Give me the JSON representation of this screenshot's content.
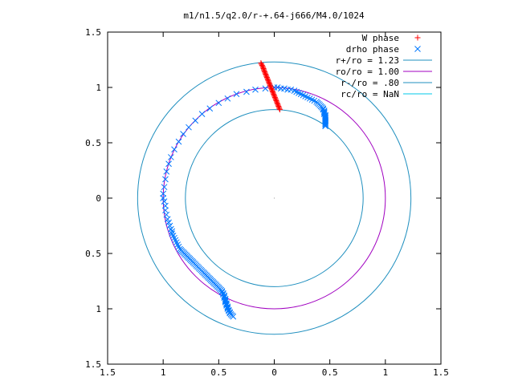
{
  "chart_data": {
    "type": "scatter",
    "title": "m1/n1.5/q2.0/r-+.64-j666/M4.0/1024",
    "xlim": [
      -1.5,
      1.5
    ],
    "ylim": [
      -1.5,
      1.5
    ],
    "x_ticks": [
      {
        "value": -1.5,
        "label": "1.5"
      },
      {
        "value": -1,
        "label": "1"
      },
      {
        "value": -0.5,
        "label": "0.5"
      },
      {
        "value": 0,
        "label": "0"
      },
      {
        "value": 0.5,
        "label": "0.5"
      },
      {
        "value": 1,
        "label": "1"
      },
      {
        "value": 1.5,
        "label": "1.5"
      }
    ],
    "y_ticks": [
      {
        "value": 1.5,
        "label": "1.5"
      },
      {
        "value": 1,
        "label": "1"
      },
      {
        "value": 0.5,
        "label": "0.5"
      },
      {
        "value": 0,
        "label": "0"
      },
      {
        "value": -0.5,
        "label": "0.5"
      },
      {
        "value": -1,
        "label": "1"
      },
      {
        "value": -1.5,
        "label": "1.5"
      }
    ],
    "grid": false,
    "legend_position": "top-right",
    "circles": [
      {
        "name": "r+/ro = 1.23",
        "radius": 1.23,
        "color": "#1f8fbf"
      },
      {
        "name": "ro/ro = 1.00",
        "radius": 1.0,
        "color": "#a000c0"
      },
      {
        "name": "r-/ro = .80",
        "radius": 0.8,
        "color": "#1f8fbf"
      },
      {
        "name": "rc/ro = NaN",
        "radius": null,
        "color": "#00c8e8"
      }
    ],
    "series": [
      {
        "name": "W phase",
        "marker": "plus",
        "color": "#ff0000",
        "points": [
          [
            -0.12,
            1.22
          ],
          [
            -0.115,
            1.21
          ],
          [
            -0.11,
            1.2
          ],
          [
            -0.105,
            1.19
          ],
          [
            -0.1,
            1.18
          ],
          [
            -0.097,
            1.17
          ],
          [
            -0.094,
            1.16
          ],
          [
            -0.09,
            1.15
          ],
          [
            -0.086,
            1.14
          ],
          [
            -0.082,
            1.13
          ],
          [
            -0.078,
            1.12
          ],
          [
            -0.074,
            1.11
          ],
          [
            -0.07,
            1.1
          ],
          [
            -0.066,
            1.09
          ],
          [
            -0.062,
            1.08
          ],
          [
            -0.058,
            1.07
          ],
          [
            -0.054,
            1.06
          ],
          [
            -0.05,
            1.05
          ],
          [
            -0.046,
            1.04
          ],
          [
            -0.042,
            1.03
          ],
          [
            -0.038,
            1.02
          ],
          [
            -0.034,
            1.01
          ],
          [
            -0.03,
            1.0
          ],
          [
            -0.026,
            0.99
          ],
          [
            -0.022,
            0.98
          ],
          [
            -0.018,
            0.97
          ],
          [
            -0.014,
            0.96
          ],
          [
            -0.01,
            0.95
          ],
          [
            -0.006,
            0.94
          ],
          [
            -0.002,
            0.93
          ],
          [
            0.002,
            0.92
          ],
          [
            0.006,
            0.91
          ],
          [
            0.01,
            0.9
          ],
          [
            0.014,
            0.89
          ],
          [
            0.018,
            0.88
          ],
          [
            0.022,
            0.87
          ],
          [
            0.026,
            0.86
          ],
          [
            0.03,
            0.85
          ],
          [
            0.034,
            0.84
          ],
          [
            0.038,
            0.83
          ],
          [
            0.042,
            0.82
          ],
          [
            0.046,
            0.81
          ],
          [
            0.05,
            0.8
          ]
        ]
      },
      {
        "name": "drho phase",
        "marker": "cross",
        "color": "#0078ff",
        "points": [
          [
            -0.37,
            -1.07
          ],
          [
            -0.38,
            -1.06
          ],
          [
            -0.39,
            -1.05
          ],
          [
            -0.4,
            -1.04
          ],
          [
            -0.4,
            -1.03
          ],
          [
            -0.41,
            -1.02
          ],
          [
            -0.41,
            -1.01
          ],
          [
            -0.42,
            -1.0
          ],
          [
            -0.42,
            -0.99
          ],
          [
            -0.42,
            -0.98
          ],
          [
            -0.43,
            -0.97
          ],
          [
            -0.43,
            -0.96
          ],
          [
            -0.43,
            -0.95
          ],
          [
            -0.44,
            -0.94
          ],
          [
            -0.44,
            -0.93
          ],
          [
            -0.44,
            -0.92
          ],
          [
            -0.44,
            -0.91
          ],
          [
            -0.45,
            -0.9
          ],
          [
            -0.45,
            -0.89
          ],
          [
            -0.45,
            -0.88
          ],
          [
            -0.46,
            -0.87
          ],
          [
            -0.46,
            -0.86
          ],
          [
            -0.47,
            -0.85
          ],
          [
            -0.47,
            -0.84
          ],
          [
            -0.48,
            -0.83
          ],
          [
            -0.49,
            -0.82
          ],
          [
            -0.5,
            -0.81
          ],
          [
            -0.51,
            -0.8
          ],
          [
            -0.52,
            -0.79
          ],
          [
            -0.53,
            -0.78
          ],
          [
            -0.54,
            -0.77
          ],
          [
            -0.55,
            -0.76
          ],
          [
            -0.56,
            -0.75
          ],
          [
            -0.57,
            -0.74
          ],
          [
            -0.58,
            -0.73
          ],
          [
            -0.59,
            -0.72
          ],
          [
            -0.6,
            -0.71
          ],
          [
            -0.61,
            -0.7
          ],
          [
            -0.62,
            -0.69
          ],
          [
            -0.63,
            -0.68
          ],
          [
            -0.64,
            -0.67
          ],
          [
            -0.65,
            -0.66
          ],
          [
            -0.66,
            -0.65
          ],
          [
            -0.67,
            -0.64
          ],
          [
            -0.68,
            -0.63
          ],
          [
            -0.69,
            -0.62
          ],
          [
            -0.7,
            -0.61
          ],
          [
            -0.71,
            -0.6
          ],
          [
            -0.72,
            -0.59
          ],
          [
            -0.73,
            -0.58
          ],
          [
            -0.74,
            -0.57
          ],
          [
            -0.75,
            -0.56
          ],
          [
            -0.76,
            -0.55
          ],
          [
            -0.77,
            -0.54
          ],
          [
            -0.78,
            -0.53
          ],
          [
            -0.79,
            -0.52
          ],
          [
            -0.8,
            -0.51
          ],
          [
            -0.81,
            -0.5
          ],
          [
            -0.82,
            -0.49
          ],
          [
            -0.83,
            -0.48
          ],
          [
            -0.84,
            -0.47
          ],
          [
            -0.85,
            -0.46
          ],
          [
            -0.86,
            -0.44
          ],
          [
            -0.87,
            -0.42
          ],
          [
            -0.88,
            -0.4
          ],
          [
            -0.89,
            -0.38
          ],
          [
            -0.9,
            -0.36
          ],
          [
            -0.91,
            -0.34
          ],
          [
            -0.92,
            -0.32
          ],
          [
            -0.92,
            -0.3
          ],
          [
            -0.93,
            -0.28
          ],
          [
            -0.94,
            -0.25
          ],
          [
            -0.95,
            -0.22
          ],
          [
            -0.96,
            -0.19
          ],
          [
            -0.97,
            -0.15
          ],
          [
            -0.98,
            -0.11
          ],
          [
            -0.98,
            -0.07
          ],
          [
            -0.99,
            -0.03
          ],
          [
            -1.0,
            0.0
          ],
          [
            -1.0,
            0.04
          ],
          [
            -0.99,
            0.1
          ],
          [
            -0.98,
            0.17
          ],
          [
            -0.97,
            0.24
          ],
          [
            -0.95,
            0.31
          ],
          [
            -0.93,
            0.37
          ],
          [
            -0.9,
            0.44
          ],
          [
            -0.86,
            0.51
          ],
          [
            -0.82,
            0.58
          ],
          [
            -0.77,
            0.64
          ],
          [
            -0.71,
            0.7
          ],
          [
            -0.65,
            0.76
          ],
          [
            -0.58,
            0.81
          ],
          [
            -0.5,
            0.86
          ],
          [
            -0.42,
            0.9
          ],
          [
            -0.34,
            0.94
          ],
          [
            -0.25,
            0.96
          ],
          [
            -0.17,
            0.98
          ],
          [
            -0.08,
            0.99
          ],
          [
            0.0,
            1.0
          ],
          [
            0.03,
            1.0
          ],
          [
            0.06,
            0.99
          ],
          [
            0.09,
            0.99
          ],
          [
            0.12,
            0.98
          ],
          [
            0.15,
            0.98
          ],
          [
            0.18,
            0.97
          ],
          [
            0.2,
            0.96
          ],
          [
            0.22,
            0.95
          ],
          [
            0.24,
            0.94
          ],
          [
            0.26,
            0.93
          ],
          [
            0.28,
            0.92
          ],
          [
            0.3,
            0.91
          ],
          [
            0.32,
            0.9
          ],
          [
            0.34,
            0.89
          ],
          [
            0.36,
            0.88
          ],
          [
            0.38,
            0.87
          ],
          [
            0.39,
            0.86
          ],
          [
            0.4,
            0.85
          ],
          [
            0.41,
            0.84
          ],
          [
            0.42,
            0.83
          ],
          [
            0.43,
            0.82
          ],
          [
            0.44,
            0.81
          ],
          [
            0.44,
            0.8
          ],
          [
            0.45,
            0.79
          ],
          [
            0.45,
            0.78
          ],
          [
            0.45,
            0.77
          ],
          [
            0.45,
            0.76
          ],
          [
            0.46,
            0.75
          ],
          [
            0.46,
            0.74
          ],
          [
            0.46,
            0.73
          ],
          [
            0.46,
            0.72
          ],
          [
            0.46,
            0.71
          ],
          [
            0.46,
            0.7
          ],
          [
            0.46,
            0.69
          ],
          [
            0.46,
            0.68
          ],
          [
            0.46,
            0.67
          ],
          [
            0.46,
            0.66
          ],
          [
            0.46,
            0.65
          ]
        ]
      }
    ]
  }
}
